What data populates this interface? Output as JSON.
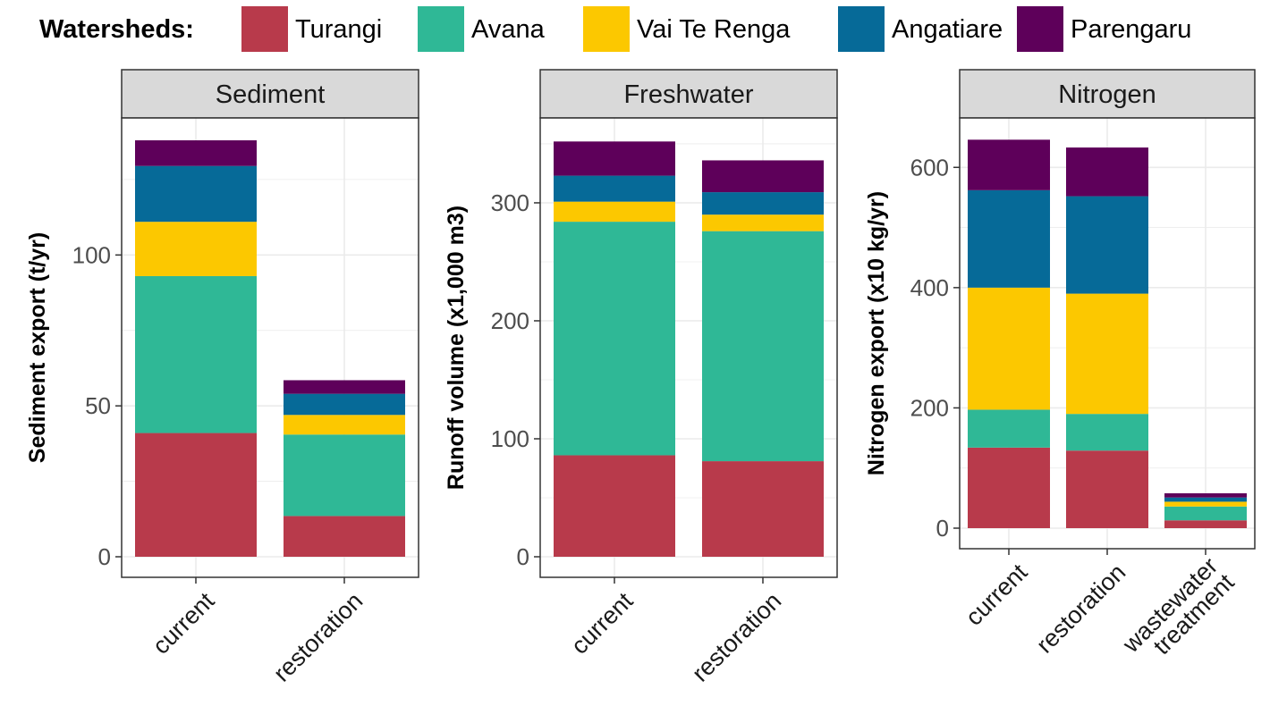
{
  "chart_data": {
    "legend": {
      "title": "Watersheds:",
      "placement": "top",
      "entries": [
        {
          "name": "Turangi",
          "color": "#b83a4b"
        },
        {
          "name": "Avana",
          "color": "#2fb896"
        },
        {
          "name": "Vai Te Renga",
          "color": "#fcc800"
        },
        {
          "name": "Angatiare",
          "color": "#066a98"
        },
        {
          "name": "Parengaru",
          "color": "#5e005a"
        }
      ]
    },
    "panels": [
      {
        "type": "bar",
        "stacked": true,
        "title": "Sediment",
        "ylabel": "Sediment export (t/yr)",
        "ylim": [
          0,
          138
        ],
        "yticks": [
          0,
          50,
          100
        ],
        "grid": true,
        "categories": [
          {
            "lines": [
              "current"
            ]
          },
          {
            "lines": [
              "restoration"
            ]
          }
        ],
        "series": [
          {
            "name": "Turangi",
            "values": [
              41,
              13.5
            ]
          },
          {
            "name": "Avana",
            "values": [
              52,
              27
            ]
          },
          {
            "name": "Vai Te Renga",
            "values": [
              18,
              6.5
            ]
          },
          {
            "name": "Angatiare",
            "values": [
              18.5,
              7
            ]
          },
          {
            "name": "Parengaru",
            "values": [
              8.5,
              4.5
            ]
          }
        ]
      },
      {
        "type": "bar",
        "stacked": true,
        "title": "Freshwater",
        "ylabel": "Runoff volume (x1,000 m3)",
        "ylim": [
          0,
          353
        ],
        "yticks": [
          0,
          100,
          200,
          300
        ],
        "grid": true,
        "categories": [
          {
            "lines": [
              "current"
            ]
          },
          {
            "lines": [
              "restoration"
            ]
          }
        ],
        "series": [
          {
            "name": "Turangi",
            "values": [
              86,
              81
            ]
          },
          {
            "name": "Avana",
            "values": [
              198,
              195
            ]
          },
          {
            "name": "Vai Te Renga",
            "values": [
              17,
              14
            ]
          },
          {
            "name": "Angatiare",
            "values": [
              22,
              19
            ]
          },
          {
            "name": "Parengaru",
            "values": [
              29,
              27
            ]
          }
        ]
      },
      {
        "type": "bar",
        "stacked": true,
        "title": "Nitrogen",
        "ylabel": "Nitrogen export (x10 kg/yr)",
        "ylim": [
          0,
          645
        ],
        "yticks": [
          0,
          200,
          400,
          600
        ],
        "grid": true,
        "categories": [
          {
            "lines": [
              "current"
            ]
          },
          {
            "lines": [
              "restoration"
            ]
          },
          {
            "lines": [
              "wastewater",
              "treatment"
            ]
          }
        ],
        "series": [
          {
            "name": "Turangi",
            "values": [
              134,
              129,
              13
            ]
          },
          {
            "name": "Avana",
            "values": [
              63,
              61,
              23
            ]
          },
          {
            "name": "Vai Te Renga",
            "values": [
              203,
              200,
              8
            ]
          },
          {
            "name": "Angatiare",
            "values": [
              162,
              162,
              7
            ]
          },
          {
            "name": "Parengaru",
            "values": [
              84,
              81,
              7
            ]
          }
        ]
      }
    ]
  }
}
